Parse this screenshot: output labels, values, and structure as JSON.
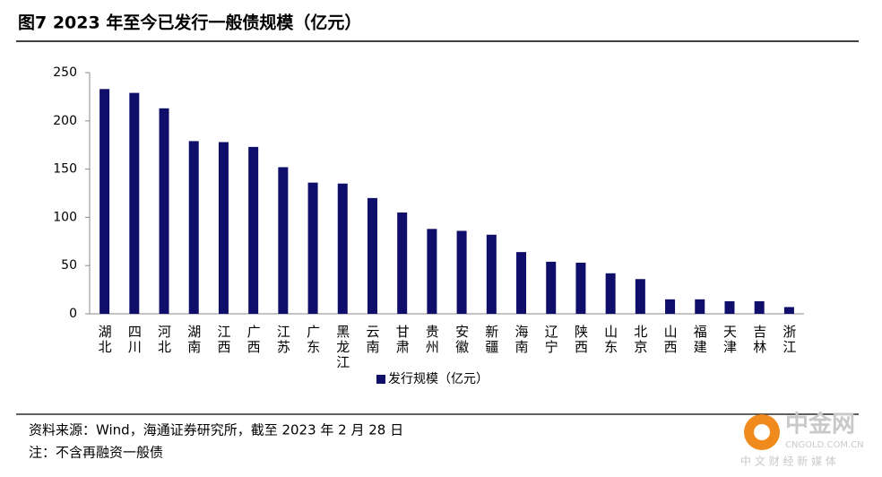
{
  "chart_data": {
    "type": "bar",
    "title": "图7  2023 年至今已发行一般债规模（亿元）",
    "categories": [
      "湖北",
      "四川",
      "河北",
      "湖南",
      "江西",
      "广西",
      "江苏",
      "广东",
      "黑龙江",
      "云南",
      "甘肃",
      "贵州",
      "安徽",
      "新疆",
      "海南",
      "辽宁",
      "陕西",
      "山东",
      "北京",
      "山西",
      "福建",
      "天津",
      "吉林",
      "浙江"
    ],
    "series": [
      {
        "name": "发行规模（亿元）",
        "color": "#0f0f6b",
        "values": [
          233,
          229,
          213,
          179,
          178,
          173,
          152,
          136,
          135,
          120,
          105,
          88,
          86,
          82,
          64,
          54,
          53,
          42,
          36,
          15,
          15,
          13,
          13,
          7
        ]
      }
    ],
    "ylim": [
      0,
      250
    ],
    "yticks": [
      0,
      50,
      100,
      150,
      200,
      250
    ],
    "grid": false,
    "legend": "bottom"
  },
  "notes": [
    "资料来源：Wind，海通证券研究所，截至 2023 年 2 月 28 日",
    "注：不含再融资一般债"
  ],
  "watermark": {
    "name": "中金网",
    "site": "CNGOLD.COM.CN",
    "slogan": "中 文 财 经 新 媒 体"
  }
}
